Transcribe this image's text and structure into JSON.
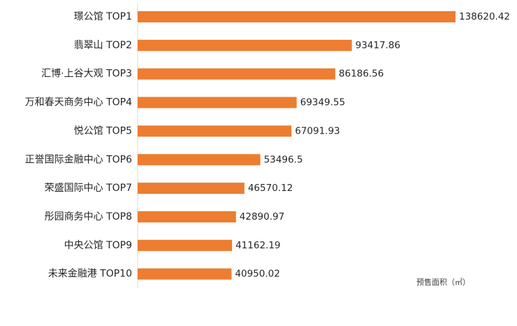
{
  "chart_data": {
    "type": "bar",
    "orientation": "horizontal",
    "categories": [
      "璟公馆 TOP1",
      "翡翠山 TOP2",
      "汇博·上谷大观 TOP3",
      "万和春天商务中心 TOP4",
      "悦公馆 TOP5",
      "正誉国际金融中心 TOP6",
      "荣盛国际中心 TOP7",
      "彤园商务中心 TOP8",
      "中央公馆 TOP9",
      "未来金融港 TOP10"
    ],
    "values": [
      138620.42,
      93417.86,
      86186.56,
      69349.55,
      67091.93,
      53496.5,
      46570.12,
      42890.97,
      41162.19,
      40950.02
    ],
    "color": "#ed7d31",
    "annotation": "预售面积（㎡）"
  }
}
